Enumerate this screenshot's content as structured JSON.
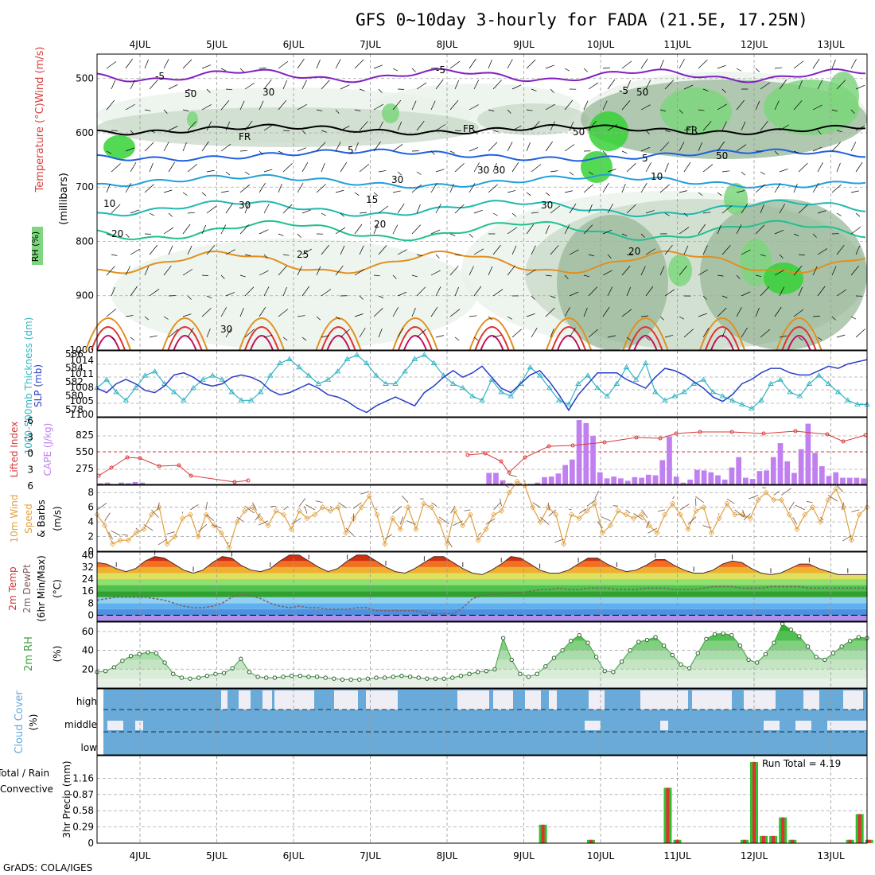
{
  "title": "GFS 0~10day 3-hourly for FADA (21.5E, 17.25N)",
  "footer": "GrADS: COLA/IGES",
  "day_labels": [
    "4JUL",
    "5JUL",
    "6JUL",
    "7JUL",
    "8JUL",
    "9JUL",
    "10JUL",
    "11JUL",
    "12JUL",
    "13JUL"
  ],
  "colors": {
    "rh_light": "#e8f2e8",
    "rh_mid": "#c8d8c8",
    "rh_dark": "#9ab89a",
    "rh_green": "#7ed67e",
    "rh_bright": "#36d236",
    "slp": "#2a3cc8",
    "thickness": "#30b4c4",
    "lifted_index": "#d83a3a",
    "cape": "#c080f0",
    "wind": "#e0a040",
    "dewpoint": "#806060",
    "rh2m": "#40a040",
    "cloud": "#6aaad8",
    "precip_total": "#30c030",
    "precip_conv": "#e03030",
    "temp_hot": "#c01818",
    "temp_warm": "#f08020"
  },
  "chart_data": [
    {
      "type": "contour",
      "panel": "upper_air",
      "ylabel": "Temperature (°C)Wind (m/s)",
      "ylabel2": "RH (%)",
      "ylabel3": "(millibars)",
      "yticks": [
        500,
        600,
        700,
        800,
        900,
        1000
      ],
      "ylim": [
        1000,
        450
      ],
      "temperature_labels": [
        "-5",
        "-5",
        "-5",
        "FR",
        "FR",
        "FR",
        "5",
        "5",
        "10",
        "15",
        "20",
        "20",
        "20",
        "25",
        "30"
      ],
      "rh_labels": [
        "30",
        "50",
        "50",
        "30",
        "30",
        "10",
        "30",
        "50",
        "30",
        "30",
        "50"
      ]
    },
    {
      "type": "line",
      "panel": "slp_thickness",
      "ylabel_left": "1000-500mb Thickness (dm)",
      "ylabel_right": "SLP (mb)",
      "left_ticks": [
        "586",
        "584",
        "582",
        "580",
        "578"
      ],
      "right_ticks": [
        "1014",
        "1011",
        "1008",
        "1005",
        "1100"
      ],
      "x": [
        0,
        1,
        2,
        3,
        4,
        5,
        6,
        7,
        8,
        9,
        10,
        11,
        12,
        13,
        14,
        15,
        16,
        17,
        18,
        19,
        20,
        21,
        22,
        23,
        24,
        25,
        26,
        27,
        28,
        29,
        30,
        31,
        32,
        33,
        34,
        35,
        36,
        37,
        38,
        39,
        40,
        41,
        42,
        43,
        44,
        45,
        46,
        47,
        48,
        49,
        50,
        51,
        52,
        53,
        54,
        55,
        56,
        57,
        58,
        59,
        60,
        61,
        62,
        63,
        64,
        65,
        66,
        67,
        68,
        69,
        70,
        71,
        72,
        73,
        74,
        75,
        76,
        77,
        78,
        79,
        80
      ],
      "series": [
        {
          "name": "thickness",
          "values": [
            581.5,
            582.5,
            581.0,
            580.0,
            581.5,
            583.0,
            583.5,
            582.0,
            581.0,
            580.0,
            581.5,
            582.5,
            583.0,
            582.5,
            581.0,
            580.0,
            580.0,
            581.0,
            583.0,
            584.5,
            585.0,
            584.0,
            583.0,
            582.0,
            582.5,
            583.5,
            585.0,
            585.5,
            584.5,
            583.0,
            582.0,
            582.0,
            583.5,
            585.0,
            585.5,
            584.5,
            583.0,
            582.0,
            581.5,
            580.5,
            580.0,
            582.5,
            581.0,
            580.5,
            582.0,
            584.0,
            583.0,
            581.5,
            580.0,
            579.5,
            582.0,
            583.0,
            581.5,
            580.5,
            582.0,
            584.0,
            582.5,
            584.5,
            581.0,
            580.0,
            580.5,
            581.0,
            582.0,
            582.5,
            581.0,
            580.5,
            580.0,
            579.5,
            579.0,
            580.0,
            582.0,
            582.5,
            581.0,
            580.5,
            582.0,
            583.0,
            582.0,
            581.0,
            580.0,
            579.5,
            579.5
          ]
        },
        {
          "name": "slp",
          "values": [
            1008.5,
            1007.5,
            1009.5,
            1010.5,
            1009.5,
            1008.0,
            1007.5,
            1009.0,
            1011.5,
            1012.0,
            1011.0,
            1009.5,
            1009.0,
            1009.5,
            1011.0,
            1011.5,
            1011.0,
            1010.0,
            1008.0,
            1007.0,
            1007.5,
            1008.5,
            1009.5,
            1008.5,
            1007.0,
            1006.5,
            1005.5,
            1004.0,
            1003.0,
            1004.5,
            1005.5,
            1006.5,
            1005.5,
            1004.5,
            1007.5,
            1009.0,
            1011.0,
            1012.5,
            1011.0,
            1012.0,
            1013.5,
            1011.0,
            1008.5,
            1007.5,
            1009.5,
            1011.5,
            1012.5,
            1010.0,
            1007.0,
            1003.5,
            1007.0,
            1009.5,
            1012.0,
            1012.0,
            1012.0,
            1010.5,
            1009.5,
            1008.5,
            1011.0,
            1013.0,
            1012.5,
            1011.5,
            1010.0,
            1008.5,
            1006.5,
            1005.5,
            1007.0,
            1009.5,
            1010.5,
            1012.0,
            1013.0,
            1013.0,
            1012.0,
            1011.5,
            1011.5,
            1012.5,
            1013.5,
            1013.0,
            1014.0,
            1014.5,
            1015.0
          ]
        }
      ]
    },
    {
      "type": "bar",
      "panel": "cape_lifted_index",
      "ylabel_left": "Lifted Index",
      "ylabel_right": "CAPE (J/kg)",
      "li_ticks": [
        "-6",
        "-3",
        "0",
        "3",
        "6"
      ],
      "cape_ticks": [
        "825",
        "550",
        "275"
      ],
      "series": [
        {
          "name": "CAPE",
          "values": [
            20,
            30,
            0,
            30,
            20,
            40,
            30,
            0,
            0,
            0,
            0,
            0,
            0,
            0,
            0,
            0,
            0,
            0,
            0,
            0,
            0,
            0,
            0,
            0,
            0,
            0,
            0,
            0,
            0,
            0,
            0,
            0,
            0,
            0,
            0,
            0,
            0,
            0,
            0,
            0,
            0,
            0,
            0,
            0,
            0,
            0,
            0,
            0,
            0,
            0,
            0,
            0,
            0,
            0,
            0,
            0,
            190,
            190,
            70,
            20,
            10,
            0,
            0,
            30,
            120,
            130,
            180,
            320,
            410,
            1060,
            1010,
            800,
            200,
            100,
            130,
            100,
            60,
            120,
            110,
            160,
            150,
            400,
            790,
            130,
            30,
            80,
            240,
            230,
            200,
            150,
            80,
            280,
            450,
            110,
            90,
            220,
            230,
            450,
            680,
            380,
            190,
            580,
            1000,
            520,
            300,
            140,
            200,
            110,
            110,
            110,
            100
          ]
        },
        {
          "name": "Lifted Index",
          "values": [
            5.5,
            4.0,
            3.5,
            2.5,
            1.5,
            0.5,
            1.5,
            2.0,
            2.0,
            2.5,
            3.0,
            4.5,
            6.0,
            6.0,
            6.5,
            7.0,
            6.5,
            7.5,
            6.0,
            6.5
          ]
        }
      ]
    },
    {
      "type": "line",
      "panel": "wind10m",
      "ylabel": "10m Wind Speed & Barbs (m/s)",
      "yticks": [
        "8",
        "6",
        "4",
        "2",
        "0"
      ],
      "ylim": [
        0,
        9
      ],
      "series": [
        {
          "name": "10m Wind Speed",
          "values": [
            5.0,
            3.5,
            1.0,
            1.5,
            1.5,
            2.5,
            3.0,
            5.0,
            6.0,
            1.0,
            2.0,
            4.5,
            5.0,
            2.0,
            5.0,
            3.5,
            2.5,
            0.5,
            4.0,
            5.5,
            6.0,
            4.5,
            3.5,
            5.5,
            5.0,
            3.0,
            5.5,
            4.5,
            5.0,
            6.0,
            5.5,
            6.0,
            2.5,
            4.5,
            6.0,
            7.5,
            5.0,
            1.0,
            4.5,
            3.0,
            6.0,
            3.0,
            6.5,
            6.0,
            4.0,
            1.0,
            5.5,
            3.5,
            5.0,
            1.5,
            3.0,
            5.0,
            5.5,
            8.0,
            9.5,
            9.0,
            6.0,
            4.0,
            6.0,
            5.0,
            1.0,
            5.0,
            4.5,
            5.5,
            6.5,
            2.5,
            3.5,
            5.5,
            5.0,
            4.5,
            5.0,
            3.5,
            2.5,
            5.0,
            6.5,
            5.0,
            3.0,
            5.5,
            6.0,
            2.5,
            4.5,
            6.5,
            5.0,
            5.0,
            4.5,
            7.0,
            8.0,
            7.0,
            7.0,
            5.0,
            3.0,
            5.0,
            6.0,
            4.0,
            7.0,
            8.5,
            6.0,
            1.5,
            5.0,
            6.0
          ]
        }
      ]
    },
    {
      "type": "area",
      "panel": "temp2m",
      "ylabel": "2m Temp 2m DewPt (6hr Min/Max) (°C)",
      "yticks": [
        "40",
        "32",
        "24",
        "16",
        "8",
        "0"
      ],
      "ylim": [
        -4,
        42
      ],
      "series": [
        {
          "name": "2m Temp",
          "values": [
            35,
            34,
            31,
            29,
            31,
            36,
            39,
            38,
            34,
            30,
            28,
            30,
            35,
            39,
            38,
            33,
            30,
            29,
            31,
            36,
            40,
            40,
            36,
            32,
            29,
            31,
            36,
            40,
            40,
            36,
            32,
            29,
            28,
            31,
            35,
            39,
            39,
            35,
            31,
            28,
            27,
            30,
            34,
            39,
            38,
            34,
            30,
            28,
            28,
            30,
            34,
            38,
            38,
            34,
            31,
            29,
            30,
            33,
            37,
            37,
            33,
            30,
            28,
            28,
            30,
            34,
            36,
            35,
            31,
            28,
            27,
            28,
            31,
            34,
            34,
            31,
            29,
            27,
            27,
            27,
            27
          ]
        },
        {
          "name": "2m DewPt",
          "values": [
            10,
            11,
            12,
            12,
            12,
            12,
            11,
            10,
            8,
            6,
            5,
            5,
            6,
            8,
            12,
            14,
            13,
            11,
            8,
            6,
            5,
            6,
            5,
            5,
            4,
            4,
            4,
            5,
            5,
            3,
            3,
            3,
            3,
            3,
            2,
            1,
            1,
            1,
            5,
            11,
            13,
            14,
            14,
            15,
            15,
            16,
            17,
            17,
            18,
            17,
            17,
            18,
            18,
            18,
            17,
            17,
            17,
            18,
            18,
            18,
            17,
            17,
            17,
            18,
            19,
            19,
            19,
            18,
            18,
            18,
            19,
            19,
            19,
            19,
            18,
            18,
            18,
            18,
            18,
            18,
            18
          ]
        }
      ]
    },
    {
      "type": "area",
      "panel": "rh2m",
      "ylabel": "2m RH (%)",
      "yticks": [
        "60",
        "40",
        "20"
      ],
      "ylim": [
        0,
        70
      ],
      "series": [
        {
          "name": "2m RH",
          "values": [
            17,
            18,
            22,
            29,
            34,
            36,
            38,
            37,
            27,
            15,
            11,
            10,
            11,
            13,
            15,
            16,
            21,
            31,
            17,
            12,
            11,
            11,
            12,
            13,
            13,
            12,
            12,
            11,
            10,
            9,
            9,
            9,
            10,
            11,
            11,
            12,
            13,
            12,
            11,
            10,
            10,
            10,
            11,
            13,
            15,
            17,
            18,
            20,
            53,
            30,
            15,
            12,
            15,
            23,
            32,
            40,
            50,
            56,
            48,
            33,
            18,
            17,
            28,
            40,
            49,
            51,
            54,
            45,
            35,
            25,
            21,
            37,
            52,
            57,
            58,
            56,
            45,
            30,
            27,
            36,
            48,
            68,
            62,
            55,
            44,
            33,
            30,
            37,
            44,
            50,
            54,
            53
          ]
        }
      ]
    },
    {
      "type": "area",
      "panel": "cloud_cover",
      "ylabel": "Cloud Cover (%)",
      "layers": [
        "high",
        "middle",
        "low"
      ]
    },
    {
      "type": "bar",
      "panel": "precip",
      "ylabel": "3hr Precip (mm)",
      "ylabel2": "Total / Rain",
      "ylabel3": "Convective",
      "yticks": [
        "1.16",
        "0.87",
        "0.58",
        "0.29",
        "0"
      ],
      "annotation": "Run Total = 4.19",
      "series": [
        {
          "name": "Total / Rain",
          "events": [
            {
              "x": "9JUL+06",
              "value": 0.33
            },
            {
              "x": "9JUL+21",
              "value": 0.06
            },
            {
              "x": "10JUL+21",
              "value": 0.99
            },
            {
              "x": "11JUL+00",
              "value": 0.06
            },
            {
              "x": "11JUL+21",
              "value": 0.06
            },
            {
              "x": "12JUL+00",
              "value": 1.45
            },
            {
              "x": "12JUL+03",
              "value": 0.13
            },
            {
              "x": "12JUL+06",
              "value": 0.13
            },
            {
              "x": "12JUL+09",
              "value": 0.46
            },
            {
              "x": "12JUL+12",
              "value": 0.06
            },
            {
              "x": "13JUL+06",
              "value": 0.06
            },
            {
              "x": "13JUL+09",
              "value": 0.52
            },
            {
              "x": "13JUL+12",
              "value": 0.06
            }
          ]
        }
      ]
    }
  ]
}
